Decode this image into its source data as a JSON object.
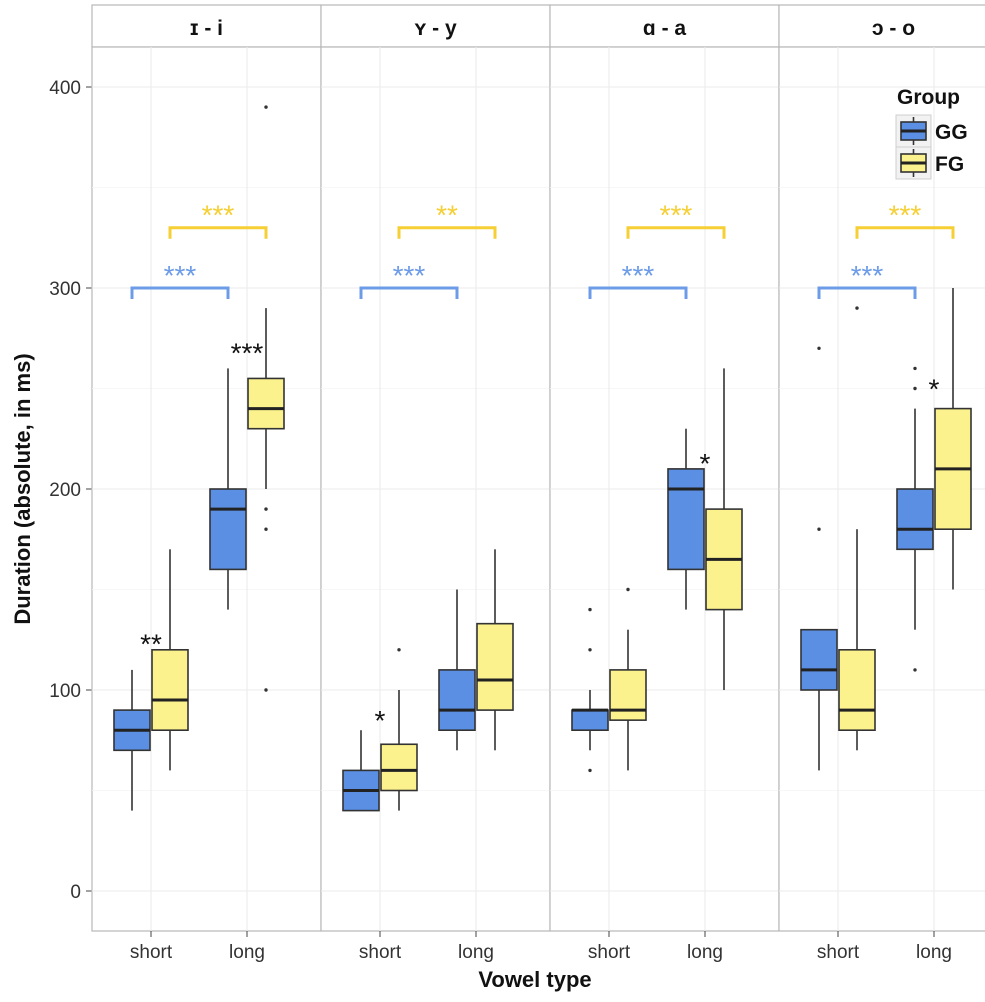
{
  "chart_data": {
    "type": "boxplot",
    "xlabel": "Vowel type",
    "ylabel": "Duration (absolute, in ms)",
    "yticks": [
      0,
      100,
      200,
      300,
      400
    ],
    "ylim": [
      -20,
      420
    ],
    "categories": [
      "short",
      "long"
    ],
    "colors": {
      "GG": "#5B8FE3",
      "FG": "#FBF28E",
      "GG_sig": "#6C9BE8",
      "FG_sig": "#F5CF33",
      "star": "#111111"
    },
    "legend": {
      "title": "Group",
      "items": [
        "GG",
        "FG"
      ],
      "position": "top-right"
    },
    "panels": [
      {
        "label": "ɪ - i",
        "boxes": [
          {
            "category": "short",
            "group": "GG",
            "whisker_low": 40,
            "q1": 70,
            "median": 80,
            "q3": 90,
            "whisker_high": 110,
            "outliers": []
          },
          {
            "category": "short",
            "group": "FG",
            "whisker_low": 60,
            "q1": 80,
            "median": 95,
            "q3": 120,
            "whisker_high": 170,
            "outliers": []
          },
          {
            "category": "long",
            "group": "GG",
            "whisker_low": 140,
            "q1": 160,
            "median": 190,
            "q3": 200,
            "whisker_high": 260,
            "outliers": []
          },
          {
            "category": "long",
            "group": "FG",
            "whisker_low": 200,
            "q1": 230,
            "median": 240,
            "q3": 255,
            "whisker_high": 290,
            "outliers": [
              390,
              190,
              180,
              100
            ]
          }
        ],
        "category_sig": [
          {
            "category": "short",
            "label": "**",
            "y": 128
          },
          {
            "category": "long",
            "label": "***",
            "y": 273
          }
        ],
        "group_sig": [
          {
            "group": "GG",
            "label": "***",
            "y": 300
          },
          {
            "group": "FG",
            "label": "***",
            "y": 330
          }
        ]
      },
      {
        "label": "ʏ - y",
        "boxes": [
          {
            "category": "short",
            "group": "GG",
            "whisker_low": 40,
            "q1": 40,
            "median": 50,
            "q3": 60,
            "whisker_high": 80,
            "outliers": []
          },
          {
            "category": "short",
            "group": "FG",
            "whisker_low": 40,
            "q1": 50,
            "median": 60,
            "q3": 73,
            "whisker_high": 100,
            "outliers": [
              120
            ]
          },
          {
            "category": "long",
            "group": "GG",
            "whisker_low": 70,
            "q1": 80,
            "median": 90,
            "q3": 110,
            "whisker_high": 150,
            "outliers": []
          },
          {
            "category": "long",
            "group": "FG",
            "whisker_low": 70,
            "q1": 90,
            "median": 105,
            "q3": 133,
            "whisker_high": 170,
            "outliers": []
          }
        ],
        "category_sig": [
          {
            "category": "short",
            "label": "*",
            "y": 90
          }
        ],
        "group_sig": [
          {
            "group": "GG",
            "label": "***",
            "y": 300
          },
          {
            "group": "FG",
            "label": "**",
            "y": 330
          }
        ]
      },
      {
        "label": "ɑ - a",
        "boxes": [
          {
            "category": "short",
            "group": "GG",
            "whisker_low": 70,
            "q1": 80,
            "median": 90,
            "q3": 90,
            "whisker_high": 100,
            "outliers": [
              140,
              120,
              60
            ]
          },
          {
            "category": "short",
            "group": "FG",
            "whisker_low": 60,
            "q1": 85,
            "median": 90,
            "q3": 110,
            "whisker_high": 130,
            "outliers": [
              150
            ]
          },
          {
            "category": "long",
            "group": "GG",
            "whisker_low": 140,
            "q1": 160,
            "median": 200,
            "q3": 210,
            "whisker_high": 230,
            "outliers": []
          },
          {
            "category": "long",
            "group": "FG",
            "whisker_low": 100,
            "q1": 140,
            "median": 165,
            "q3": 190,
            "whisker_high": 260,
            "outliers": []
          }
        ],
        "category_sig": [
          {
            "category": "long",
            "label": "*",
            "y": 218
          }
        ],
        "group_sig": [
          {
            "group": "GG",
            "label": "***",
            "y": 300
          },
          {
            "group": "FG",
            "label": "***",
            "y": 330
          }
        ]
      },
      {
        "label": "ɔ - o",
        "boxes": [
          {
            "category": "short",
            "group": "GG",
            "whisker_low": 60,
            "q1": 100,
            "median": 110,
            "q3": 130,
            "whisker_high": 130,
            "outliers": [
              270,
              180
            ]
          },
          {
            "category": "short",
            "group": "FG",
            "whisker_low": 70,
            "q1": 80,
            "median": 90,
            "q3": 120,
            "whisker_high": 180,
            "outliers": [
              290
            ]
          },
          {
            "category": "long",
            "group": "GG",
            "whisker_low": 130,
            "q1": 170,
            "median": 180,
            "q3": 200,
            "whisker_high": 240,
            "outliers": [
              260,
              250,
              110
            ]
          },
          {
            "category": "long",
            "group": "FG",
            "whisker_low": 150,
            "q1": 180,
            "median": 210,
            "q3": 240,
            "whisker_high": 300,
            "outliers": []
          }
        ],
        "category_sig": [
          {
            "category": "long",
            "label": "*",
            "y": 255
          }
        ],
        "group_sig": [
          {
            "group": "GG",
            "label": "***",
            "y": 300
          },
          {
            "group": "FG",
            "label": "***",
            "y": 330
          }
        ]
      }
    ]
  }
}
